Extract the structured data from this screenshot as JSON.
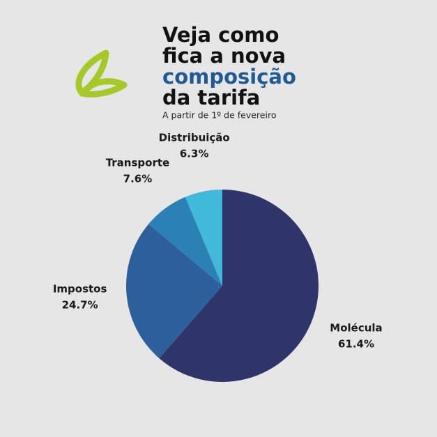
{
  "chart_data": {
    "type": "pie",
    "title_lines": [
      "Veja como",
      "fica a nova",
      "composição",
      "da tarifa"
    ],
    "subtitle": "A partir de 1º de fevereiro",
    "categories": [
      "Molécula",
      "Impostos",
      "Transporte",
      "Distribuição"
    ],
    "values": [
      61.4,
      24.7,
      7.6,
      6.3
    ],
    "value_labels": [
      "61.4%",
      "24.7%",
      "7.6%",
      "6.3%"
    ],
    "colors": [
      "#2f3469",
      "#2d5f9b",
      "#2b80b6",
      "#41b9da"
    ]
  }
}
